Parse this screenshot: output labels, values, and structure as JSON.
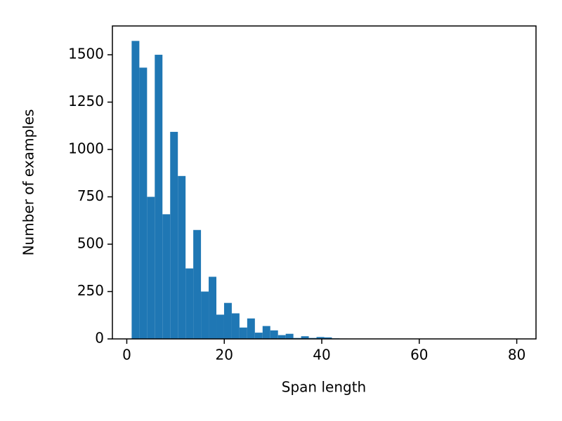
{
  "chart_data": {
    "type": "histogram",
    "xlabel": "Span length",
    "ylabel": "Number of examples",
    "color": "#1f77b4",
    "bins": [
      1,
      2.58,
      4.16,
      5.74,
      7.32,
      8.9,
      10.48,
      12.06,
      13.64,
      15.22,
      16.8,
      18.38,
      19.96,
      21.54,
      23.12,
      24.7,
      26.28,
      27.86,
      29.44,
      31.02,
      32.6,
      34.18,
      35.76,
      37.34,
      38.92,
      40.5,
      42.08,
      43.66,
      45.24,
      46.82,
      48.4,
      49.98,
      51.56,
      53.14,
      54.72,
      56.3,
      57.88,
      59.46,
      61.04,
      62.62,
      64.2,
      65.78,
      67.36,
      68.94,
      70.52,
      72.1,
      73.68,
      75.26,
      76.84,
      78.42,
      80
    ],
    "counts": [
      1573,
      1432,
      750,
      1500,
      658,
      1093,
      860,
      372,
      575,
      250,
      328,
      128,
      190,
      135,
      60,
      108,
      33,
      68,
      45,
      20,
      27,
      5,
      14,
      5,
      10,
      8,
      3,
      2,
      1,
      1,
      0,
      0,
      0,
      0,
      0,
      0,
      0,
      0,
      0,
      0,
      0,
      0,
      0,
      0,
      0,
      0,
      0,
      0,
      0,
      1
    ],
    "xlim": [
      -2.95,
      83.95
    ],
    "ylim": [
      0,
      1652
    ],
    "xticks": [
      0,
      20,
      40,
      60,
      80
    ],
    "yticks": [
      0,
      250,
      500,
      750,
      1000,
      1250,
      1500
    ]
  }
}
